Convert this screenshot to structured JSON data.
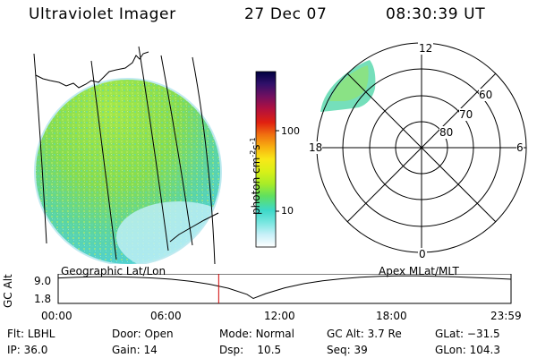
{
  "header": {
    "title": "Ultraviolet Imager",
    "date": "27 Dec 07",
    "time": "08:30:39 UT"
  },
  "colorbar": {
    "label": "photon cm",
    "label_exp1": "-2",
    "label_mid": "s",
    "label_exp2": "-1",
    "ticks": [
      "100",
      "10"
    ],
    "tick_values": [
      100,
      10
    ],
    "range": [
      2.5,
      330
    ],
    "scale": "log",
    "colors": [
      "#ffffff",
      "#c8f0f8",
      "#78e6e0",
      "#3cd8c8",
      "#60e060",
      "#a8ec28",
      "#d8f018",
      "#f8e818",
      "#f8b010",
      "#f07010",
      "#e02010",
      "#b01040",
      "#701060",
      "#30106a",
      "#000040"
    ]
  },
  "polar": {
    "mlt_labels": [
      "12",
      "18",
      "6",
      "0"
    ],
    "lat_labels": [
      "60",
      "70",
      "80"
    ],
    "lat_values": [
      60,
      70,
      80
    ]
  },
  "timeline": {
    "left_label": "Geographic Lat/Lon",
    "right_label": "Apex MLat/MLT",
    "ylabel": "GC Alt",
    "yticks": [
      "9.0",
      "1.8"
    ],
    "xticks": [
      "00:00",
      "06:00",
      "12:00",
      "18:00",
      "23:59"
    ],
    "current_time": "08:30:39",
    "current_marker_color": "#d00000"
  },
  "chart_data": {
    "type": "line",
    "title": "",
    "xlabel": "",
    "ylabel": "GC Alt",
    "xlim": [
      "00:00",
      "23:59"
    ],
    "ylim": [
      1.8,
      9.0
    ],
    "x": [
      "00:00",
      "01:00",
      "02:00",
      "03:00",
      "04:00",
      "05:00",
      "06:00",
      "07:00",
      "08:00",
      "09:00",
      "10:00",
      "10:20",
      "11:00",
      "12:00",
      "13:00",
      "14:00",
      "15:00",
      "16:00",
      "17:00",
      "18:00",
      "19:00",
      "20:00",
      "21:00",
      "22:00",
      "23:00",
      "23:59"
    ],
    "series": [
      {
        "values": [
          8.0,
          8.2,
          8.3,
          8.3,
          8.2,
          8.0,
          7.7,
          7.2,
          6.5,
          5.5,
          4.0,
          3.0,
          4.2,
          5.6,
          6.6,
          7.3,
          7.8,
          8.2,
          8.4,
          8.5,
          8.5,
          8.4,
          8.3,
          8.1,
          7.9,
          7.7
        ]
      }
    ]
  },
  "status": {
    "flt_label": "Flt:",
    "flt_value": "LBHL",
    "ip_label": "IP:",
    "ip_value": "36.0",
    "door_label": "Door:",
    "door_value": "Open",
    "gain_label": "Gain:",
    "gain_value": "14",
    "mode_label": "Mode:",
    "mode_value": "Normal",
    "dsp_label": "Dsp:",
    "dsp_value": "10.5",
    "gcalt_label": "GC Alt:",
    "gcalt_value": "3.7 Re",
    "seq_label": "Seq:",
    "seq_value": "39",
    "glat_label": "GLat:",
    "glat_value": "−31.5",
    "glon_label": "GLon:",
    "glon_value": "104.3"
  }
}
